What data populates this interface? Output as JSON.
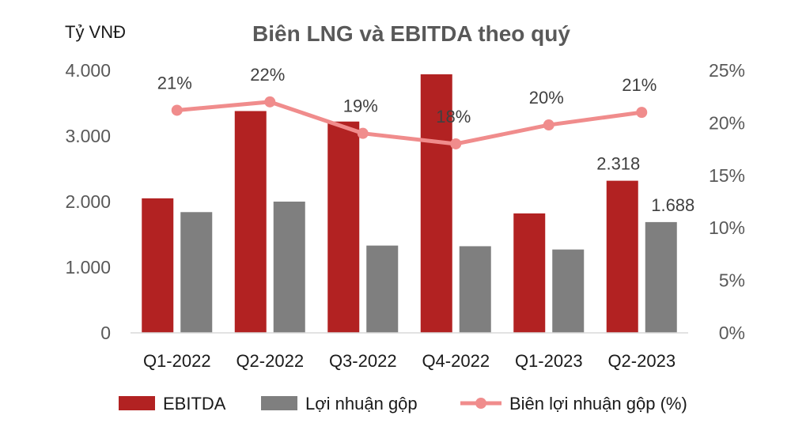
{
  "chart_data": {
    "type": "bar",
    "title": "Biên LNG và EBITDA theo quý",
    "ylabel": "Tỷ VNĐ",
    "categories": [
      "Q1-2022",
      "Q2-2022",
      "Q3-2022",
      "Q4-2022",
      "Q1-2023",
      "Q2-2023"
    ],
    "ylim": [
      0,
      4000
    ],
    "yticks": [
      0,
      1000,
      2000,
      3000,
      4000
    ],
    "ytick_labels": [
      "0",
      "1.000",
      "2.000",
      "3.000",
      "4.000"
    ],
    "y2lim": [
      0,
      25
    ],
    "y2ticks": [
      0,
      5,
      10,
      15,
      20,
      25
    ],
    "y2tick_labels": [
      "0%",
      "5%",
      "10%",
      "15%",
      "20%",
      "25%"
    ],
    "series": [
      {
        "name": "EBITDA",
        "kind": "bar",
        "axis": "left",
        "color": "#b22222",
        "values": [
          2050,
          3380,
          3220,
          3940,
          1820,
          2318
        ],
        "labels": [
          "",
          "",
          "",
          "",
          "",
          "2.318"
        ]
      },
      {
        "name": "Lợi nhuận gộp",
        "kind": "bar",
        "axis": "left",
        "color": "#7f7f7f",
        "values": [
          1840,
          2000,
          1330,
          1320,
          1270,
          1688
        ],
        "labels": [
          "",
          "",
          "",
          "",
          "",
          "1.688"
        ]
      },
      {
        "name": "Biên lợi nhuận gộp (%)",
        "kind": "line",
        "axis": "right",
        "color": "#f08c8c",
        "values": [
          21.2,
          22.0,
          19.0,
          18.0,
          19.8,
          21.0
        ],
        "labels": [
          "21%",
          "22%",
          "19%",
          "18%",
          "20%",
          "21%"
        ]
      }
    ],
    "legend": "bottom",
    "grid": false
  }
}
